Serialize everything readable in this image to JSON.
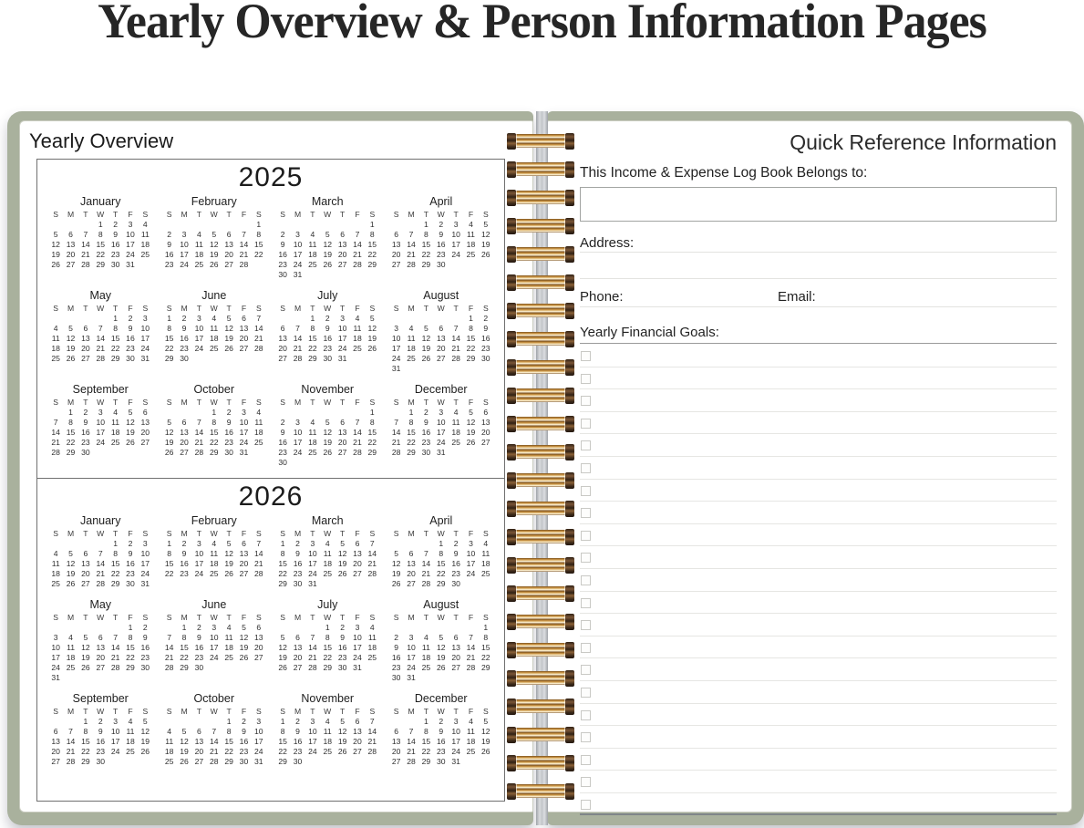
{
  "page_title": "Yearly Overview & Person Information Pages",
  "colors": {
    "cover_green": "#a9b19d",
    "coil_gold": "#c89140",
    "coil_cap_brown": "#3a2818"
  },
  "binding": {
    "coil_count": 24
  },
  "left_page": {
    "title": "Yearly Overview",
    "dow": [
      "S",
      "M",
      "T",
      "W",
      "T",
      "F",
      "S"
    ],
    "years": [
      {
        "label": "2025",
        "months": [
          {
            "name": "January",
            "weeks": [
              ". . . 1 2 3 4",
              "5 6 7 8 9 10 11",
              "12 13 14 15 16 17 18",
              "19 20 21 22 23 24 25",
              "26 27 28 29 30 31"
            ]
          },
          {
            "name": "February",
            "weeks": [
              ". . . . . . 1",
              "2 3 4 5 6 7 8",
              "9 10 11 12 13 14 15",
              "16 17 18 19 20 21 22",
              "23 24 25 26 27 28"
            ]
          },
          {
            "name": "March",
            "weeks": [
              ". . . . . . 1",
              "2 3 4 5 6 7 8",
              "9 10 11 12 13 14 15",
              "16 17 18 19 20 21 22",
              "23 24 25 26 27 28 29",
              "30 31"
            ]
          },
          {
            "name": "April",
            "weeks": [
              ". . 1 2 3 4 5",
              "6 7 8 9 10 11 12",
              "13 14 15 16 17 18 19",
              "20 21 22 23 24 25 26",
              "27 28 29 30"
            ]
          },
          {
            "name": "May",
            "weeks": [
              ". . . . 1 2 3",
              "4 5 6 7 8 9 10",
              "11 12 13 14 15 16 17",
              "18 19 20 21 22 23 24",
              "25 26 27 28 29 30 31"
            ]
          },
          {
            "name": "June",
            "weeks": [
              "1 2 3 4 5 6 7",
              "8 9 10 11 12 13 14",
              "15 16 17 18 19 20 21",
              "22 23 24 25 26 27 28",
              "29 30"
            ]
          },
          {
            "name": "July",
            "weeks": [
              ". . 1 2 3 4 5",
              "6 7 8 9 10 11 12",
              "13 14 15 16 17 18 19",
              "20 21 22 23 24 25 26",
              "27 28 29 30 31"
            ]
          },
          {
            "name": "August",
            "weeks": [
              ". . . . . 1 2",
              "3 4 5 6 7 8 9",
              "10 11 12 13 14 15 16",
              "17 18 19 20 21 22 23",
              "24 25 26 27 28 29 30",
              "31"
            ]
          },
          {
            "name": "September",
            "weeks": [
              ". 1 2 3 4 5 6",
              "7 8 9 10 11 12 13",
              "14 15 16 17 18 19 20",
              "21 22 23 24 25 26 27",
              "28 29 30"
            ]
          },
          {
            "name": "October",
            "weeks": [
              ". . . 1 2 3 4",
              "5 6 7 8 9 10 11",
              "12 13 14 15 16 17 18",
              "19 20 21 22 23 24 25",
              "26 27 28 29 30 31"
            ]
          },
          {
            "name": "November",
            "weeks": [
              ". . . . . . 1",
              "2 3 4 5 6 7 8",
              "9 10 11 12 13 14 15",
              "16 17 18 19 20 21 22",
              "23 24 25 26 27 28 29",
              "30"
            ]
          },
          {
            "name": "December",
            "weeks": [
              ". 1 2 3 4 5 6",
              "7 8 9 10 11 12 13",
              "14 15 16 17 18 19 20",
              "21 22 23 24 25 26 27",
              "28 29 30 31"
            ]
          }
        ]
      },
      {
        "label": "2026",
        "months": [
          {
            "name": "January",
            "weeks": [
              ". . . . 1 2 3",
              "4 5 6 7 8 9 10",
              "11 12 13 14 15 16 17",
              "18 19 20 21 22 23 24",
              "25 26 27 28 29 30 31"
            ]
          },
          {
            "name": "February",
            "weeks": [
              "1 2 3 4 5 6 7",
              "8 9 10 11 12 13 14",
              "15 16 17 18 19 20 21",
              "22 23 24 25 26 27 28"
            ]
          },
          {
            "name": "March",
            "weeks": [
              "1 2 3 4 5 6 7",
              "8 9 10 11 12 13 14",
              "15 16 17 18 19 20 21",
              "22 23 24 25 26 27 28",
              "29 30 31"
            ]
          },
          {
            "name": "April",
            "weeks": [
              ". . . 1 2 3 4",
              "5 6 7 8 9 10 11",
              "12 13 14 15 16 17 18",
              "19 20 21 22 23 24 25",
              "26 27 28 29 30"
            ]
          },
          {
            "name": "May",
            "weeks": [
              ". . . . . 1 2",
              "3 4 5 6 7 8 9",
              "10 11 12 13 14 15 16",
              "17 18 19 20 21 22 23",
              "24 25 26 27 28 29 30",
              "31"
            ]
          },
          {
            "name": "June",
            "weeks": [
              ". 1 2 3 4 5 6",
              "7 8 9 10 11 12 13",
              "14 15 16 17 18 19 20",
              "21 22 23 24 25 26 27",
              "28 29 30"
            ]
          },
          {
            "name": "July",
            "weeks": [
              ". . . 1 2 3 4",
              "5 6 7 8 9 10 11",
              "12 13 14 15 16 17 18",
              "19 20 21 22 23 24 25",
              "26 27 28 29 30 31"
            ]
          },
          {
            "name": "August",
            "weeks": [
              ". . . . . . 1",
              "2 3 4 5 6 7 8",
              "9 10 11 12 13 14 15",
              "16 17 18 19 20 21 22",
              "23 24 25 26 27 28 29",
              "30 31"
            ]
          },
          {
            "name": "September",
            "weeks": [
              ". . 1 2 3 4 5",
              "6 7 8 9 10 11 12",
              "13 14 15 16 17 18 19",
              "20 21 22 23 24 25 26",
              "27 28 29 30"
            ]
          },
          {
            "name": "October",
            "weeks": [
              ". . . . 1 2 3",
              "4 5 6 7 8 9 10",
              "11 12 13 14 15 16 17",
              "18 19 20 21 22 23 24",
              "25 26 27 28 29 30 31"
            ]
          },
          {
            "name": "November",
            "weeks": [
              "1 2 3 4 5 6 7",
              "8 9 10 11 12 13 14",
              "15 16 17 18 19 20 21",
              "22 23 24 25 26 27 28",
              "29 30"
            ]
          },
          {
            "name": "December",
            "weeks": [
              ". . 1 2 3 4 5",
              "6 7 8 9 10 11 12",
              "13 14 15 16 17 18 19",
              "20 21 22 23 24 25 26",
              "27 28 29 30 31"
            ]
          }
        ]
      }
    ]
  },
  "right_page": {
    "title": "Quick Reference Information",
    "belongs_label": "This Income & Expense Log Book Belongs to:",
    "name_box_value": "",
    "address_label": "Address:",
    "phone_label": "Phone:",
    "email_label": "Email:",
    "goals_label": "Yearly Financial Goals:",
    "goal_rows": 21
  }
}
